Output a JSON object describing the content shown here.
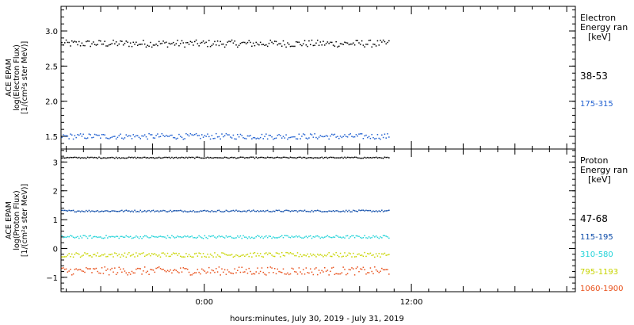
{
  "chart_data": [
    {
      "type": "scatter",
      "ylabel_lines": [
        "ACE EPAM",
        "log(Electron Flux)",
        "[1/(cm²s ster MeV)]"
      ],
      "legend_title_lines": [
        "Electron",
        "Energy ran",
        "[keV]"
      ],
      "ylim": [
        1.32,
        3.35
      ],
      "yticks": [
        1.5,
        2.0,
        2.5,
        3.0
      ],
      "ytick_labels": [
        "1.5",
        "2.0",
        "2.5",
        "3.0"
      ],
      "series": [
        {
          "name": "38-53",
          "color": "#000000",
          "level": 2.82,
          "spread": 0.05,
          "values": []
        },
        {
          "name": "175-315",
          "color": "#1f5fd0",
          "level": 1.5,
          "spread": 0.04,
          "values": []
        }
      ]
    },
    {
      "type": "scatter",
      "ylabel_lines": [
        "ACE EPAM",
        "log(Proton Flux)",
        "[1/(cm²s ster MeV)]"
      ],
      "legend_title_lines": [
        "Proton",
        "Energy ran",
        "[keV]"
      ],
      "ylim": [
        -1.5,
        3.45
      ],
      "yticks": [
        -1,
        0,
        1,
        2,
        3
      ],
      "ytick_labels": [
        "−1",
        "0",
        "1",
        "2",
        "3"
      ],
      "series": [
        {
          "name": "47-68",
          "color": "#000000",
          "level": 3.15,
          "spread": 0.02,
          "values": []
        },
        {
          "name": "115-195",
          "color": "#0b4aa8",
          "level": 1.3,
          "spread": 0.03,
          "values": []
        },
        {
          "name": "310-580",
          "color": "#22d3d8",
          "level": 0.4,
          "spread": 0.05,
          "values": []
        },
        {
          "name": "795-1193",
          "color": "#c8d400",
          "level": -0.22,
          "spread": 0.08,
          "values": []
        },
        {
          "name": "1060-1900",
          "color": "#e8501a",
          "level": -0.78,
          "spread": 0.14,
          "values": []
        }
      ]
    }
  ],
  "x_axis": {
    "label": "hours:minutes, July 30, 2019 - July 31, 2019",
    "range_hours": [
      -8.3,
      21.5
    ],
    "data_end_hours": 10.7,
    "major_ticks": [
      0,
      12
    ],
    "major_labels": [
      "0:00",
      "12:00"
    ]
  }
}
